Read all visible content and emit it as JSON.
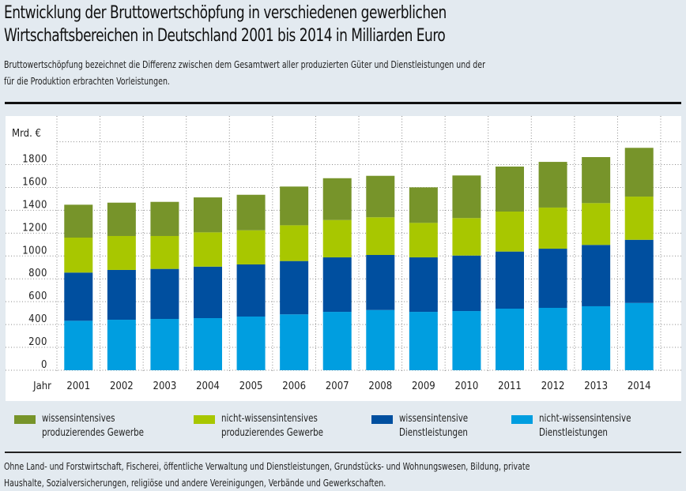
{
  "header": {
    "title_line1": "Entwicklung der Bruttowertschöpfung in verschiedenen gewerblichen",
    "title_line2": "Wirtschaftsbereichen in Deutschland 2001 bis 2014 in Milliarden Euro",
    "subtitle_line1": "Bruttowertschöpfung bezeichnet die Differenz zwischen dem Gesamtwert aller produzierten Güter und Dienstleistungen und der",
    "subtitle_line2": "für die Produktion erbrachten Vorleistungen."
  },
  "footnote": {
    "line1": "Ohne Land- und Forstwirtschaft, Fischerei, öffentliche Verwaltung und Dienstleistungen, Grundstücks- und Wohnungswesen, Bildung, private",
    "line2": "Haushalte, Sozialversicherungen, religiöse und andere Vereinigungen, Verbände und Gewerkschaften."
  },
  "chart_data": {
    "type": "bar",
    "stacked": true,
    "title": "Entwicklung der Bruttowertschöpfung in verschiedenen gewerblichen Wirtschaftsbereichen in Deutschland 2001 bis 2014 in Milliarden Euro",
    "ylabel": "Mrd. €",
    "xlabel": "Jahr",
    "ylim": [
      0,
      2000
    ],
    "yticks": [
      0,
      200,
      400,
      600,
      800,
      1000,
      1200,
      1400,
      1600,
      1800
    ],
    "grid": true,
    "legend_position": "bottom",
    "categories": [
      "2001",
      "2002",
      "2003",
      "2004",
      "2005",
      "2006",
      "2007",
      "2008",
      "2009",
      "2010",
      "2011",
      "2012",
      "2013",
      "2014"
    ],
    "series": [
      {
        "name_line1": "nicht-wissensintensive",
        "name_line2": "Dienstleistungen",
        "name": "nicht-wissensintensive Dienstleistungen",
        "color": "#009ee0",
        "values": [
          433,
          442,
          449,
          456,
          470,
          489,
          511,
          527,
          511,
          518,
          539,
          546,
          560,
          589
        ]
      },
      {
        "name_line1": "wissensintensive",
        "name_line2": "Dienstleistungen",
        "name": "wissensintensive Dienstleistungen",
        "color": "#004f9f",
        "values": [
          422,
          436,
          438,
          451,
          456,
          467,
          477,
          482,
          477,
          486,
          500,
          518,
          537,
          553
        ]
      },
      {
        "name_line1": "nicht-wissensintensives",
        "name_line2": "produzierendes Gewerbe",
        "name": "nicht-wissensintensives produzierendes Gewerbe",
        "color": "#a8c700",
        "values": [
          306,
          297,
          288,
          300,
          299,
          313,
          327,
          330,
          302,
          328,
          350,
          360,
          366,
          378
        ]
      },
      {
        "name_line1": "wissensintensives",
        "name_line2": "produzierendes Gewerbe",
        "name": "wissensintensives produzierendes Gewerbe",
        "color": "#77942a",
        "values": [
          288,
          292,
          299,
          306,
          311,
          339,
          366,
          363,
          311,
          373,
          394,
          400,
          403,
          427
        ]
      }
    ],
    "legend_order": [
      3,
      2,
      1,
      0
    ]
  }
}
